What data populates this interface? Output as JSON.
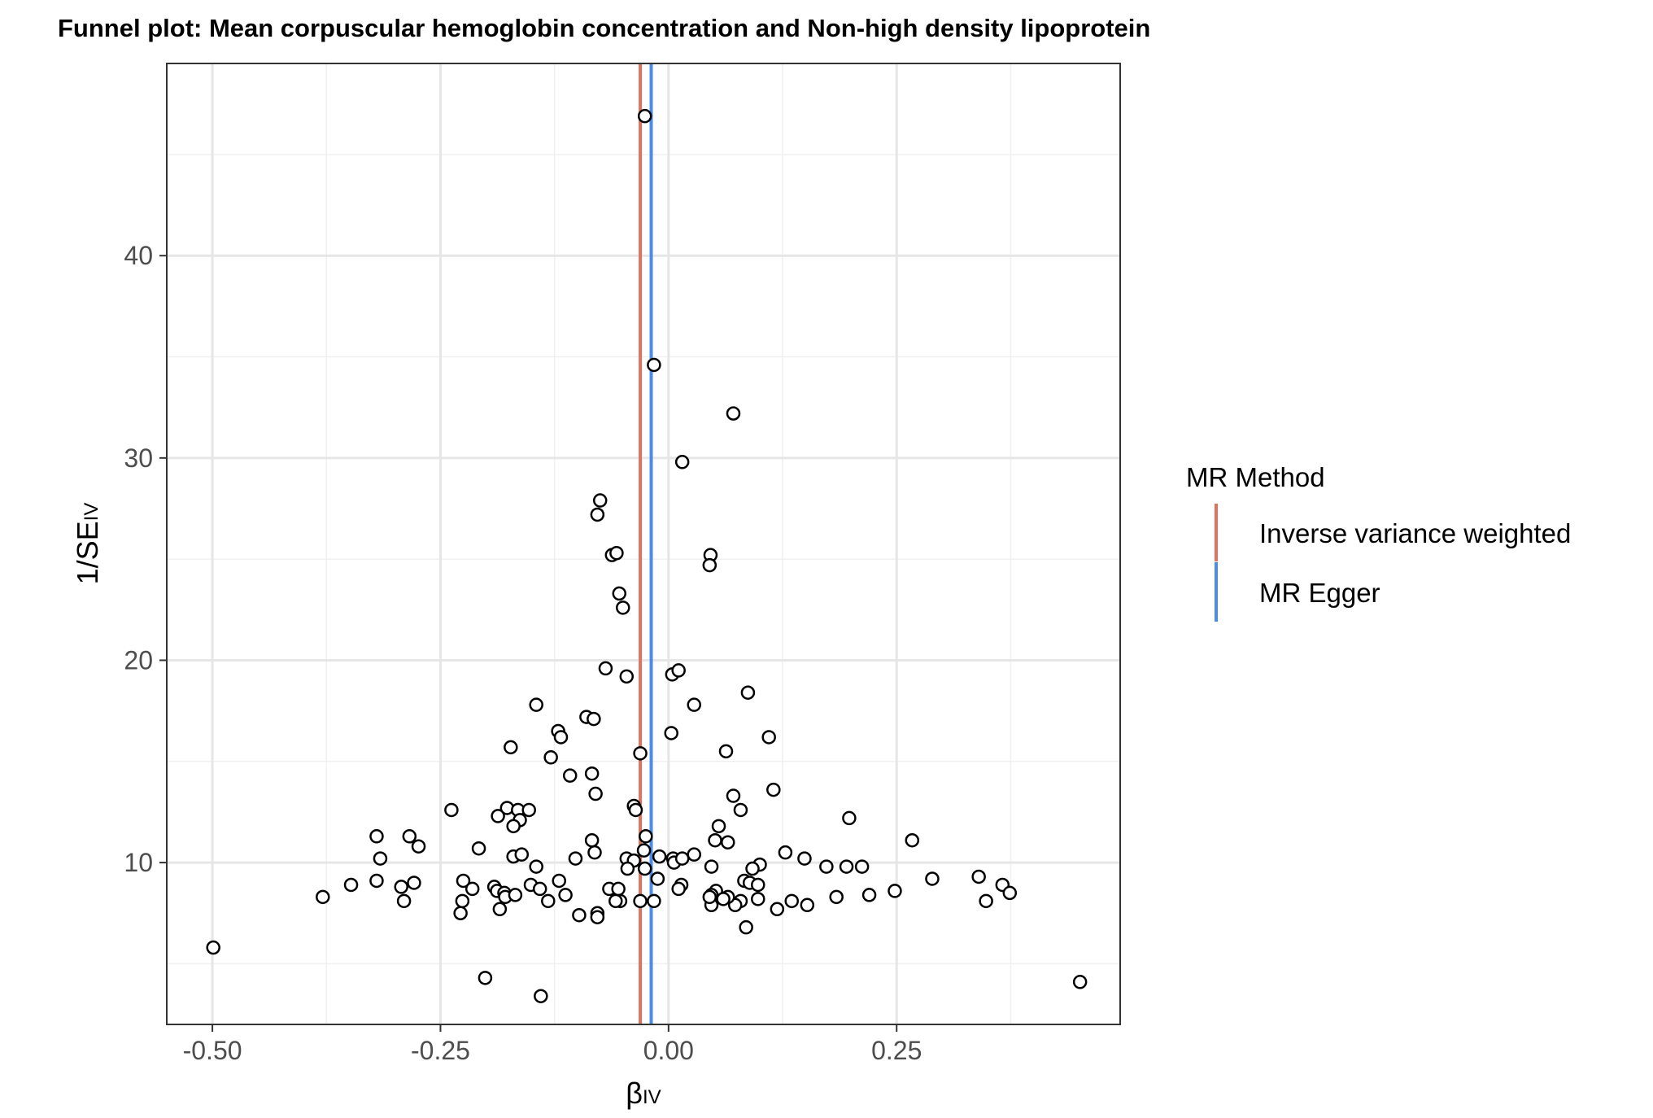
{
  "chart_data": {
    "type": "scatter",
    "title": "Funnel plot: Mean corpuscular hemoglobin concentration and Non-high density lipoprotein",
    "xlabel": {
      "main": "β",
      "sub": "IV"
    },
    "ylabel": {
      "prefix": "1/SE",
      "sub": "IV"
    },
    "xlim": [
      -0.55,
      0.495
    ],
    "ylim": [
      2.0,
      49.5
    ],
    "x_ticks": [
      -0.5,
      -0.25,
      0.0,
      0.25
    ],
    "x_tick_labels": [
      "-0.50",
      "-0.25",
      "0.00",
      "0.25"
    ],
    "y_ticks": [
      10,
      20,
      30,
      40
    ],
    "y_tick_labels": [
      "10",
      "20",
      "30",
      "40"
    ],
    "grid": true,
    "legend": {
      "title": "MR Method",
      "position": "right",
      "entries": [
        {
          "label": "Inverse variance weighted",
          "color": "#E0735F"
        },
        {
          "label": "MR Egger",
          "color": "#4A8CE8"
        }
      ]
    },
    "vlines": [
      {
        "method": "Inverse variance weighted",
        "x": -0.031,
        "color": "#E0735F"
      },
      {
        "method": "MR Egger",
        "x": -0.019,
        "color": "#4A8CE8"
      }
    ],
    "points": [
      [
        -0.026,
        46.9
      ],
      [
        -0.016,
        34.6
      ],
      [
        0.071,
        32.2
      ],
      [
        0.015,
        29.8
      ],
      [
        -0.075,
        27.9
      ],
      [
        -0.078,
        27.2
      ],
      [
        -0.062,
        25.2
      ],
      [
        -0.057,
        25.3
      ],
      [
        0.046,
        25.2
      ],
      [
        0.045,
        24.7
      ],
      [
        -0.054,
        23.3
      ],
      [
        -0.05,
        22.6
      ],
      [
        -0.069,
        19.6
      ],
      [
        -0.046,
        19.2
      ],
      [
        0.004,
        19.3
      ],
      [
        0.011,
        19.5
      ],
      [
        0.087,
        18.4
      ],
      [
        -0.145,
        17.8
      ],
      [
        0.028,
        17.8
      ],
      [
        -0.09,
        17.2
      ],
      [
        -0.082,
        17.1
      ],
      [
        -0.121,
        16.5
      ],
      [
        -0.118,
        16.2
      ],
      [
        0.003,
        16.4
      ],
      [
        0.11,
        16.2
      ],
      [
        -0.173,
        15.7
      ],
      [
        -0.129,
        15.2
      ],
      [
        -0.031,
        15.4
      ],
      [
        0.063,
        15.5
      ],
      [
        -0.108,
        14.3
      ],
      [
        -0.084,
        14.4
      ],
      [
        -0.08,
        13.4
      ],
      [
        0.115,
        13.6
      ],
      [
        0.071,
        13.3
      ],
      [
        -0.038,
        12.8
      ],
      [
        -0.036,
        12.6
      ],
      [
        -0.238,
        12.6
      ],
      [
        -0.177,
        12.7
      ],
      [
        -0.165,
        12.6
      ],
      [
        -0.153,
        12.6
      ],
      [
        -0.187,
        12.3
      ],
      [
        -0.163,
        12.1
      ],
      [
        -0.17,
        11.8
      ],
      [
        0.079,
        12.6
      ],
      [
        0.055,
        11.8
      ],
      [
        0.198,
        12.2
      ],
      [
        -0.32,
        11.3
      ],
      [
        -0.284,
        11.3
      ],
      [
        -0.274,
        10.8
      ],
      [
        -0.208,
        10.7
      ],
      [
        -0.084,
        11.1
      ],
      [
        -0.025,
        11.3
      ],
      [
        0.051,
        11.1
      ],
      [
        0.065,
        11.0
      ],
      [
        0.267,
        11.1
      ],
      [
        -0.316,
        10.2
      ],
      [
        -0.17,
        10.3
      ],
      [
        -0.161,
        10.4
      ],
      [
        -0.102,
        10.2
      ],
      [
        -0.081,
        10.5
      ],
      [
        -0.046,
        10.2
      ],
      [
        -0.027,
        10.6
      ],
      [
        -0.038,
        10.1
      ],
      [
        -0.045,
        9.7
      ],
      [
        -0.026,
        9.7
      ],
      [
        -0.01,
        10.3
      ],
      [
        0.005,
        10.2
      ],
      [
        0.006,
        10.0
      ],
      [
        0.015,
        10.2
      ],
      [
        0.028,
        10.4
      ],
      [
        0.047,
        9.8
      ],
      [
        0.1,
        9.9
      ],
      [
        0.092,
        9.7
      ],
      [
        0.128,
        10.5
      ],
      [
        0.149,
        10.2
      ],
      [
        0.173,
        9.8
      ],
      [
        0.195,
        9.8
      ],
      [
        0.212,
        9.8
      ],
      [
        -0.145,
        9.8
      ],
      [
        -0.012,
        9.2
      ],
      [
        -0.348,
        8.9
      ],
      [
        -0.32,
        9.1
      ],
      [
        -0.293,
        8.8
      ],
      [
        -0.279,
        9.0
      ],
      [
        -0.225,
        9.1
      ],
      [
        -0.215,
        8.7
      ],
      [
        -0.191,
        8.8
      ],
      [
        -0.188,
        8.6
      ],
      [
        -0.18,
        8.5
      ],
      [
        -0.179,
        8.3
      ],
      [
        -0.168,
        8.4
      ],
      [
        -0.151,
        8.9
      ],
      [
        -0.141,
        8.7
      ],
      [
        -0.12,
        9.1
      ],
      [
        -0.113,
        8.4
      ],
      [
        -0.065,
        8.7
      ],
      [
        -0.055,
        8.7
      ],
      [
        0.014,
        8.9
      ],
      [
        0.011,
        8.7
      ],
      [
        0.052,
        8.6
      ],
      [
        0.083,
        9.1
      ],
      [
        0.089,
        9.0
      ],
      [
        0.098,
        8.9
      ],
      [
        0.289,
        9.2
      ],
      [
        0.34,
        9.3
      ],
      [
        0.366,
        8.9
      ],
      [
        0.374,
        8.5
      ],
      [
        0.248,
        8.6
      ],
      [
        0.22,
        8.4
      ],
      [
        0.184,
        8.3
      ],
      [
        0.152,
        7.9
      ],
      [
        0.135,
        8.1
      ],
      [
        0.119,
        7.7
      ],
      [
        0.098,
        8.2
      ],
      [
        0.079,
        8.1
      ],
      [
        0.073,
        7.9
      ],
      [
        0.065,
        8.3
      ],
      [
        0.06,
        8.2
      ],
      [
        0.047,
        8.4
      ],
      [
        0.047,
        7.9
      ],
      [
        0.045,
        8.3
      ],
      [
        -0.016,
        8.1
      ],
      [
        -0.031,
        8.1
      ],
      [
        -0.053,
        8.1
      ],
      [
        -0.058,
        8.1
      ],
      [
        -0.132,
        8.1
      ],
      [
        -0.379,
        8.3
      ],
      [
        -0.29,
        8.1
      ],
      [
        -0.226,
        8.1
      ],
      [
        -0.228,
        7.5
      ],
      [
        -0.185,
        7.7
      ],
      [
        -0.098,
        7.4
      ],
      [
        -0.078,
        7.5
      ],
      [
        -0.078,
        7.3
      ],
      [
        0.085,
        6.8
      ],
      [
        -0.499,
        5.8
      ],
      [
        -0.201,
        4.3
      ],
      [
        -0.14,
        3.4
      ],
      [
        0.451,
        4.1
      ],
      [
        0.348,
        8.1
      ]
    ]
  }
}
